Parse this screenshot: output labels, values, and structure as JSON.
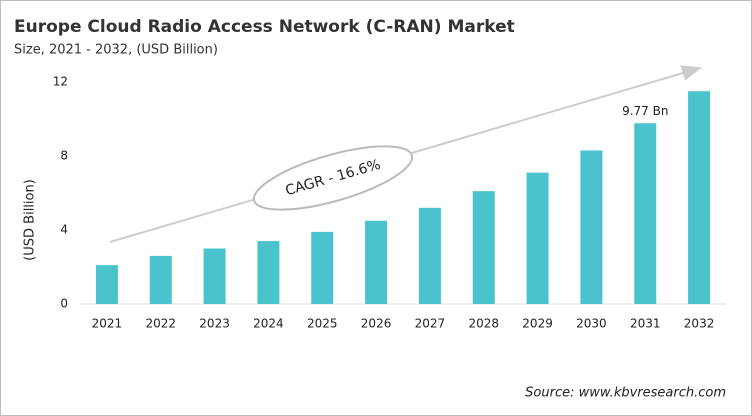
{
  "chart_data": {
    "type": "bar",
    "title": "Europe Cloud Radio Access Network (C-RAN) Market",
    "subtitle": "Size, 2021 - 2032, (USD Billion)",
    "y_label": "(USD Billion)",
    "annotation": "CAGR - 16.6%",
    "source": "Source: www.kbvresearch.com",
    "categories": [
      "2021",
      "2022",
      "2023",
      "2024",
      "2025",
      "2026",
      "2027",
      "2028",
      "2029",
      "2030",
      "2031",
      "2032"
    ],
    "values": [
      2.1,
      2.6,
      3.0,
      3.4,
      3.9,
      4.5,
      5.2,
      6.1,
      7.1,
      8.3,
      9.77,
      11.5
    ],
    "value_labels": [
      null,
      null,
      null,
      null,
      null,
      null,
      null,
      null,
      null,
      null,
      "9.77 Bn",
      null
    ],
    "color": "#4bc3cc",
    "ylim": [
      0,
      12
    ],
    "yticks": [
      0,
      4,
      8,
      12
    ],
    "grid": false
  }
}
